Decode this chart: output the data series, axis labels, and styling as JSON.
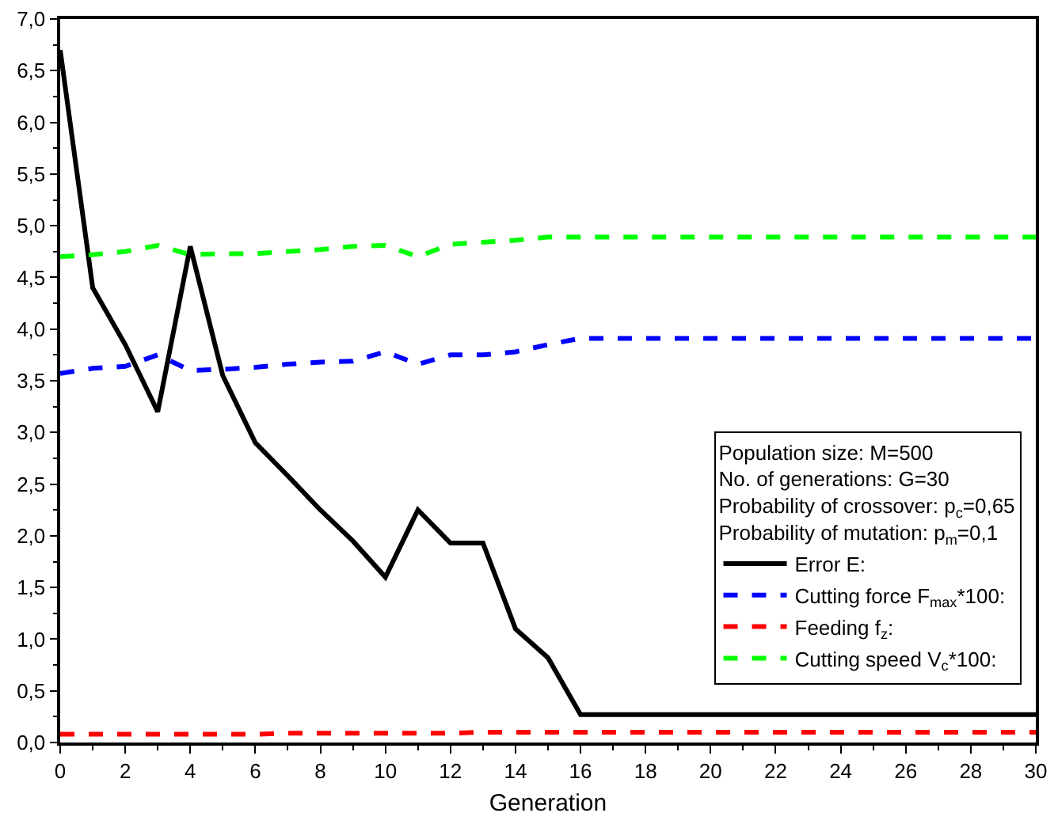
{
  "chart_data": {
    "type": "line",
    "xlabel": "Generation",
    "x": [
      0,
      1,
      2,
      3,
      4,
      5,
      6,
      7,
      8,
      9,
      10,
      11,
      12,
      13,
      14,
      15,
      16,
      17,
      18,
      19,
      20,
      21,
      22,
      23,
      24,
      25,
      26,
      27,
      28,
      29,
      30
    ],
    "series": [
      {
        "name": "Error E:",
        "color": "#000000",
        "line_style": "solid",
        "values": [
          6.7,
          4.4,
          3.85,
          3.2,
          4.8,
          3.55,
          2.9,
          2.58,
          2.25,
          1.95,
          1.6,
          2.25,
          1.93,
          1.93,
          1.1,
          0.82,
          0.27,
          0.27,
          0.27,
          0.27,
          0.27,
          0.27,
          0.27,
          0.27,
          0.27,
          0.27,
          0.27,
          0.27,
          0.27,
          0.27,
          0.27
        ]
      },
      {
        "name": "Cutting force F$_{max}$*100:",
        "color": "#0000ff",
        "line_style": "dashed",
        "values": [
          3.57,
          3.62,
          3.64,
          3.75,
          3.6,
          3.61,
          3.63,
          3.66,
          3.68,
          3.69,
          3.78,
          3.66,
          3.75,
          3.75,
          3.78,
          3.85,
          3.91,
          3.91,
          3.91,
          3.91,
          3.91,
          3.91,
          3.91,
          3.91,
          3.91,
          3.91,
          3.91,
          3.91,
          3.91,
          3.91,
          3.91
        ]
      },
      {
        "name": "Feeding f$_{z}$:",
        "color": "#ff0000",
        "line_style": "dashed",
        "values": [
          0.08,
          0.08,
          0.08,
          0.08,
          0.08,
          0.08,
          0.08,
          0.09,
          0.09,
          0.09,
          0.09,
          0.09,
          0.09,
          0.1,
          0.1,
          0.1,
          0.1,
          0.1,
          0.1,
          0.1,
          0.1,
          0.1,
          0.1,
          0.1,
          0.1,
          0.1,
          0.1,
          0.1,
          0.1,
          0.1,
          0.1
        ]
      },
      {
        "name": "Cutting speed V$_{c}$*100:",
        "color": "#00ff00",
        "line_style": "dashed",
        "values": [
          4.7,
          4.72,
          4.75,
          4.81,
          4.72,
          4.73,
          4.73,
          4.75,
          4.77,
          4.8,
          4.81,
          4.7,
          4.82,
          4.84,
          4.86,
          4.89,
          4.89,
          4.89,
          4.89,
          4.89,
          4.89,
          4.89,
          4.89,
          4.89,
          4.89,
          4.89,
          4.89,
          4.89,
          4.89,
          4.89,
          4.89
        ]
      }
    ],
    "annotations": [
      "Population size: M=500",
      "No. of generations: G=30",
      "Probability of crossover: p$_{c}$=0,65",
      "Probability of mutation: p$_{m}$=0,1"
    ],
    "xlim": [
      0,
      30
    ],
    "xticks": [
      0,
      2,
      4,
      6,
      8,
      10,
      12,
      14,
      16,
      18,
      20,
      22,
      24,
      26,
      28,
      30
    ],
    "ylim": [
      0,
      7
    ],
    "yticks": [
      {
        "value": 0,
        "label": "0,0"
      },
      {
        "value": 0.5,
        "label": "0,5"
      },
      {
        "value": 1,
        "label": "1,0"
      },
      {
        "value": 1.5,
        "label": "1,5"
      },
      {
        "value": 2,
        "label": "2,0"
      },
      {
        "value": 2.5,
        "label": "2,5"
      },
      {
        "value": 3,
        "label": "3,0"
      },
      {
        "value": 3.5,
        "label": "3,5"
      },
      {
        "value": 4,
        "label": "4,0"
      },
      {
        "value": 4.5,
        "label": "4,5"
      },
      {
        "value": 5,
        "label": "5,0"
      },
      {
        "value": 5.5,
        "label": "5,5"
      },
      {
        "value": 6,
        "label": "6,0"
      },
      {
        "value": 6.5,
        "label": "6,5"
      },
      {
        "value": 7,
        "label": "7,0"
      }
    ],
    "grid": false,
    "legend": "bottom right",
    "marker": "none"
  }
}
